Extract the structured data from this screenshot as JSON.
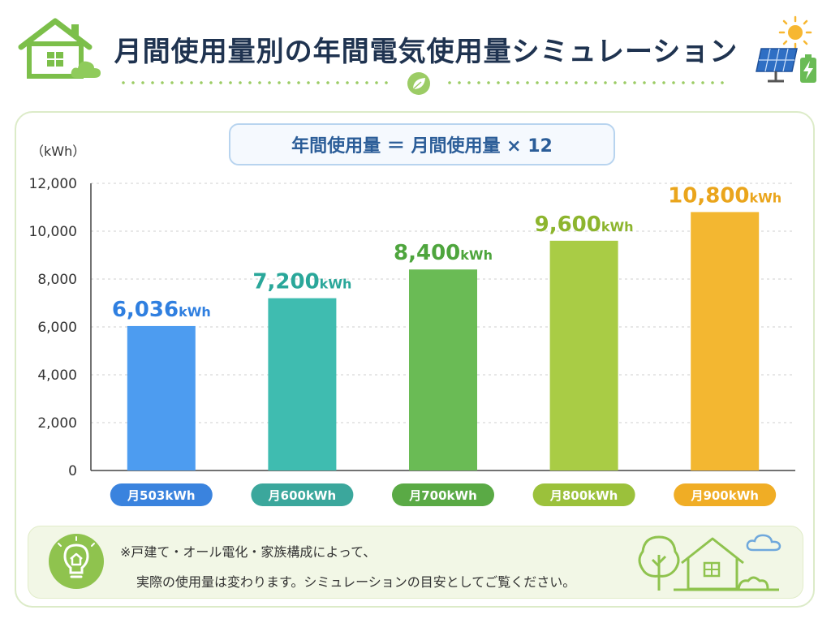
{
  "header": {
    "title": "月間使用量別の年間電気使用量シミュレーション"
  },
  "formula": "年間使用量 ＝ 月間使用量 × 12",
  "note": {
    "line1": "※戸建て・オール電化・家族構成によって、",
    "line2": "実際の使用量は変わります。シミュレーションの目安としてご覧ください。"
  },
  "icons": [
    "house-icon",
    "cloud-icon",
    "leaf-icon",
    "sun-icon",
    "solar-panel-icon",
    "battery-icon",
    "lightbulb-icon",
    "tree-icon",
    "house-outline-icon"
  ],
  "chart_data": {
    "type": "bar",
    "ylabel": "（kWh）",
    "ylim": [
      0,
      12000
    ],
    "yticks": [
      "0",
      "2,000",
      "4,000",
      "6,000",
      "8,000",
      "10,000",
      "12,000"
    ],
    "grid": true,
    "categories": [
      "月503kWh",
      "月600kWh",
      "月700kWh",
      "月800kWh",
      "月900kWh"
    ],
    "values": [
      6036,
      7200,
      8400,
      9600,
      10800
    ],
    "value_labels": [
      "6,036",
      "7,200",
      "8,400",
      "9,600",
      "10,800"
    ],
    "value_unit": "kWh",
    "colors": [
      "#4d9cf0",
      "#3fbcb0",
      "#6abb55",
      "#a9cc45",
      "#f3b731"
    ],
    "label_colors": [
      "#2f7fe0",
      "#2aa79a",
      "#4ea53d",
      "#8db52e",
      "#eaa51c"
    ],
    "pill_colors": [
      "#3a83de",
      "#3ba79c",
      "#5aaa45",
      "#9bc13b",
      "#f0ad25"
    ]
  }
}
